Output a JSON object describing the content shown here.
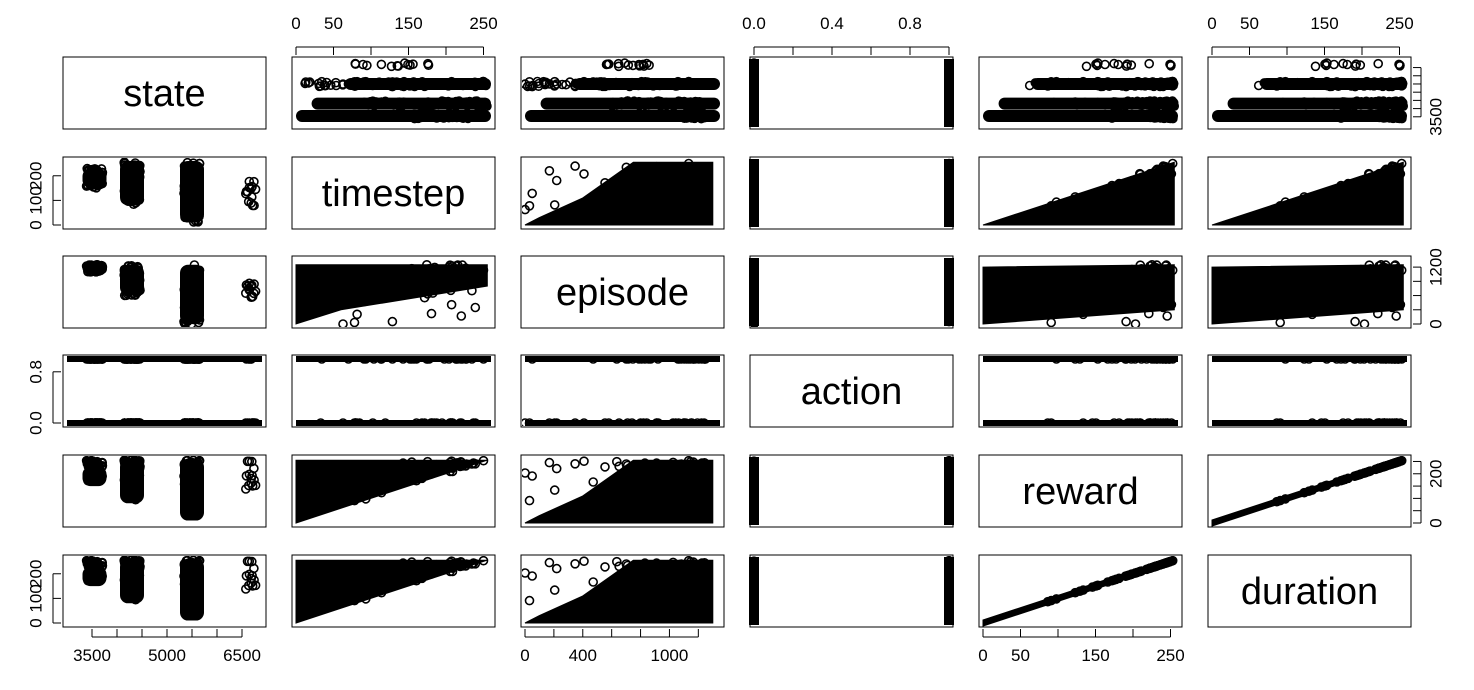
{
  "chart_data": {
    "type": "scatter",
    "kind": "scatterplot-matrix",
    "variables": [
      "state",
      "timestep",
      "episode",
      "action",
      "reward",
      "duration"
    ],
    "ranges": {
      "state": [
        3000,
        6900
      ],
      "timestep": [
        0,
        260
      ],
      "episode": [
        0,
        1350
      ],
      "action": [
        0,
        1
      ],
      "reward": [
        0,
        260
      ],
      "duration": [
        0,
        260
      ]
    },
    "ticks": {
      "state": [
        3500,
        5000,
        6500
      ],
      "state_minor": [
        3500,
        4000,
        4500,
        5000,
        5500,
        6000,
        6500
      ],
      "timestep": [
        0,
        100,
        200
      ],
      "episode": [
        0,
        400,
        1000
      ],
      "episode_minor": [
        0,
        200,
        400,
        600,
        800,
        1000,
        1200
      ],
      "episode_right": [
        0,
        1200
      ],
      "action": [
        0.0,
        0.8
      ],
      "action_top": [
        0.0,
        0.4,
        0.8
      ],
      "action_minor": [
        0.0,
        0.2,
        0.4,
        0.6,
        0.8,
        1.0
      ],
      "reward": [
        0,
        50,
        150,
        250
      ],
      "reward_minor": [
        0,
        50,
        100,
        150,
        200,
        250
      ],
      "duration": [
        0,
        200
      ],
      "duration_top": [
        0,
        50,
        150,
        250
      ],
      "duration_minor": [
        0,
        50,
        100,
        150,
        200,
        250
      ]
    },
    "tick_labels": {
      "top": {
        "timestep": [
          "0",
          "50",
          "150",
          "250"
        ],
        "action": [
          "0.0",
          "0.4",
          "0.8"
        ],
        "duration": [
          "0",
          "50",
          "150",
          "250"
        ]
      },
      "bottom": {
        "state": [
          "3500",
          "5000",
          "6500"
        ],
        "episode": [
          "0",
          "400",
          "1000"
        ],
        "reward": [
          "0",
          "50",
          "150",
          "250"
        ]
      },
      "left": {
        "timestep": [
          "0",
          "100",
          "200"
        ],
        "action": [
          "0.0",
          "0.8"
        ],
        "duration": [
          "0",
          "100",
          "200"
        ]
      },
      "right": {
        "state": [
          "3500"
        ],
        "episode": [
          "0",
          "1200"
        ],
        "reward": [
          "0",
          "200"
        ]
      }
    },
    "state_clusters": [
      {
        "state": 3550,
        "timestep_range": [
          150,
          230
        ],
        "episode_range": [
          1100,
          1250
        ]
      },
      {
        "state": 4300,
        "timestep_range": [
          80,
          260
        ],
        "episode_range": [
          600,
          1250
        ]
      },
      {
        "state": 5500,
        "timestep_range": [
          10,
          260
        ],
        "episode_range": [
          0,
          1250
        ]
      },
      {
        "state": 6700,
        "timestep_range": [
          70,
          180
        ],
        "episode_range": [
          500,
          900
        ]
      }
    ],
    "action_values": [
      0,
      1
    ],
    "duration_equals_reward": true,
    "timestep_le_reward": true
  }
}
